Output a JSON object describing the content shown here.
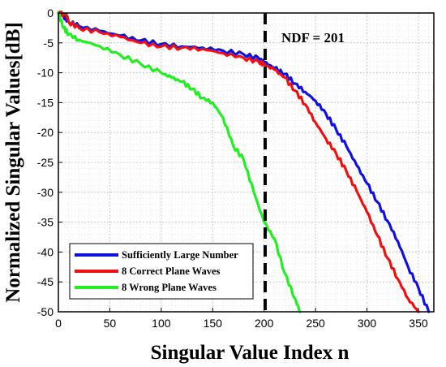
{
  "chart_data": {
    "type": "line",
    "title": "",
    "xlabel": "Singular Value Index n",
    "ylabel": "Normalized Singular Values[dB]",
    "xlim": [
      0,
      365
    ],
    "ylim": [
      -50,
      0
    ],
    "xticks": [
      0,
      50,
      100,
      150,
      200,
      250,
      300,
      350
    ],
    "yticks": [
      0,
      -5,
      -10,
      -15,
      -20,
      -25,
      -30,
      -35,
      -40,
      -45,
      -50
    ],
    "grid": "dotted",
    "legend_position": "bottom-left",
    "annotation": {
      "text": "NDF = 201",
      "x": 201
    },
    "vline": {
      "x": 201,
      "style": "dashed",
      "color": "#000000"
    },
    "series": [
      {
        "name": "Sufficiently Large Number",
        "color": "#1010e0",
        "x": [
          0,
          5,
          10,
          20,
          40,
          60,
          80,
          100,
          120,
          140,
          160,
          180,
          195,
          200,
          210,
          220,
          230,
          240,
          250,
          260,
          270,
          280,
          290,
          300,
          310,
          320,
          330,
          340,
          350,
          360
        ],
        "y": [
          0,
          -0.5,
          -1.5,
          -2.2,
          -3.0,
          -3.8,
          -4.6,
          -5.2,
          -5.6,
          -5.8,
          -6.3,
          -6.9,
          -7.6,
          -8.2,
          -9.2,
          -10.2,
          -11.8,
          -13.2,
          -14.7,
          -16.8,
          -19.5,
          -22.3,
          -25.5,
          -28.5,
          -31.6,
          -34.8,
          -38.2,
          -42.5,
          -46.0,
          -50
        ]
      },
      {
        "name": "8 Correct Plane Waves",
        "color": "#ee1010",
        "x": [
          0,
          5,
          8,
          10,
          20,
          40,
          60,
          80,
          100,
          120,
          140,
          160,
          180,
          195,
          200,
          210,
          220,
          230,
          240,
          250,
          260,
          270,
          280,
          290,
          300,
          310,
          320,
          330,
          340,
          350
        ],
        "y": [
          0,
          -0.2,
          -0.3,
          -1.5,
          -2.5,
          -3.2,
          -4.0,
          -5.0,
          -5.6,
          -5.8,
          -6.0,
          -6.7,
          -7.5,
          -8.2,
          -8.6,
          -9.5,
          -10.8,
          -13.0,
          -15.3,
          -18.3,
          -21.0,
          -23.5,
          -26.5,
          -29.8,
          -33.3,
          -37.2,
          -41.0,
          -44.5,
          -47.8,
          -50
        ]
      },
      {
        "name": "8 Wrong Plane Waves",
        "color": "#22ee22",
        "x": [
          0,
          5,
          10,
          20,
          40,
          60,
          80,
          100,
          110,
          120,
          130,
          140,
          150,
          160,
          170,
          180,
          190,
          200,
          210,
          220,
          230,
          235
        ],
        "y": [
          0,
          -2.5,
          -3.5,
          -4.5,
          -5.5,
          -7.0,
          -8.5,
          -10.0,
          -10.8,
          -11.5,
          -12.7,
          -14.2,
          -15.0,
          -17.5,
          -22.2,
          -24.5,
          -30.0,
          -35.0,
          -37.8,
          -43.5,
          -47.8,
          -50
        ]
      }
    ]
  }
}
